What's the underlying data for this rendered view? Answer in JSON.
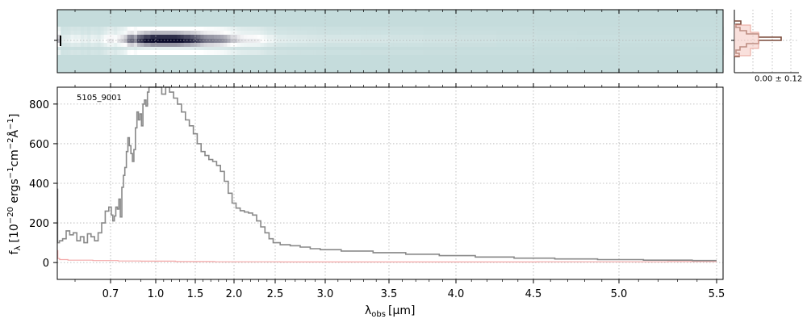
{
  "chart_data": {
    "type": "line",
    "object_label": "5105_9001",
    "x_axis": {
      "label_main": "λ",
      "label_sub": "obs",
      "label_unit": "[μm]",
      "tick_values": [
        0.7,
        1.0,
        1.5,
        2.0,
        2.5,
        3.0,
        3.5,
        4.0,
        4.5,
        5.0,
        5.5
      ],
      "tick_labels": [
        "0.7",
        "1.0",
        "1.5",
        "2.0",
        "2.5",
        "3.0",
        "3.5",
        "4.0",
        "4.5",
        "5.0",
        "5.5"
      ],
      "range": [
        0.55,
        5.53
      ],
      "scale": "nonlinear (spectral resolution)"
    },
    "y_axis": {
      "label_f": "f",
      "label_lambda": "λ",
      "label_a": "[10",
      "label_exp1": "−20",
      "label_b": " ergs",
      "label_exp2": "−1",
      "label_c": "cm",
      "label_exp3": "−2",
      "label_d": "Å",
      "label_exp4": "−1",
      "label_e": "]",
      "tick_values": [
        0,
        200,
        400,
        600,
        800
      ],
      "tick_labels": [
        "0",
        "200",
        "400",
        "600",
        "800"
      ],
      "range": [
        -85,
        885
      ]
    },
    "grid": true,
    "series": [
      {
        "role": "flux",
        "color": "#888888",
        "points": [
          [
            0.55,
            370
          ],
          [
            0.552,
            100
          ],
          [
            0.56,
            110
          ],
          [
            0.57,
            120
          ],
          [
            0.58,
            160
          ],
          [
            0.59,
            140
          ],
          [
            0.6,
            150
          ],
          [
            0.61,
            110
          ],
          [
            0.62,
            130
          ],
          [
            0.63,
            100
          ],
          [
            0.64,
            145
          ],
          [
            0.65,
            130
          ],
          [
            0.66,
            110
          ],
          [
            0.67,
            150
          ],
          [
            0.68,
            200
          ],
          [
            0.69,
            260
          ],
          [
            0.7,
            280
          ],
          [
            0.71,
            240
          ],
          [
            0.72,
            210
          ],
          [
            0.73,
            235
          ],
          [
            0.74,
            280
          ],
          [
            0.75,
            270
          ],
          [
            0.76,
            320
          ],
          [
            0.77,
            230
          ],
          [
            0.78,
            380
          ],
          [
            0.79,
            440
          ],
          [
            0.8,
            480
          ],
          [
            0.81,
            560
          ],
          [
            0.82,
            630
          ],
          [
            0.83,
            590
          ],
          [
            0.84,
            550
          ],
          [
            0.85,
            510
          ],
          [
            0.86,
            570
          ],
          [
            0.87,
            680
          ],
          [
            0.88,
            760
          ],
          [
            0.89,
            720
          ],
          [
            0.9,
            750
          ],
          [
            0.91,
            690
          ],
          [
            0.92,
            800
          ],
          [
            0.93,
            820
          ],
          [
            0.94,
            790
          ],
          [
            0.95,
            860
          ],
          [
            0.96,
            885
          ],
          [
            0.98,
            885
          ],
          [
            1.0,
            885
          ],
          [
            1.05,
            885
          ],
          [
            1.1,
            850
          ],
          [
            1.15,
            885
          ],
          [
            1.2,
            860
          ],
          [
            1.25,
            830
          ],
          [
            1.3,
            800
          ],
          [
            1.35,
            760
          ],
          [
            1.4,
            720
          ],
          [
            1.45,
            690
          ],
          [
            1.5,
            650
          ],
          [
            1.55,
            600
          ],
          [
            1.6,
            560
          ],
          [
            1.65,
            540
          ],
          [
            1.7,
            520
          ],
          [
            1.75,
            510
          ],
          [
            1.8,
            490
          ],
          [
            1.85,
            460
          ],
          [
            1.9,
            410
          ],
          [
            1.95,
            350
          ],
          [
            2.0,
            300
          ],
          [
            2.05,
            275
          ],
          [
            2.1,
            262
          ],
          [
            2.15,
            255
          ],
          [
            2.2,
            250
          ],
          [
            2.25,
            240
          ],
          [
            2.3,
            210
          ],
          [
            2.35,
            180
          ],
          [
            2.4,
            150
          ],
          [
            2.45,
            120
          ],
          [
            2.5,
            100
          ],
          [
            2.6,
            90
          ],
          [
            2.7,
            85
          ],
          [
            2.8,
            78
          ],
          [
            2.9,
            70
          ],
          [
            3.0,
            65
          ],
          [
            3.25,
            58
          ],
          [
            3.5,
            50
          ],
          [
            3.75,
            42
          ],
          [
            4.0,
            35
          ],
          [
            4.25,
            28
          ],
          [
            4.5,
            22
          ],
          [
            4.75,
            18
          ],
          [
            5.0,
            15
          ],
          [
            5.25,
            12
          ],
          [
            5.5,
            10
          ]
        ]
      },
      {
        "role": "error",
        "color": "#f4a7a7",
        "points": [
          [
            0.55,
            60
          ],
          [
            0.553,
            20
          ],
          [
            0.56,
            15
          ],
          [
            0.6,
            12
          ],
          [
            0.7,
            10
          ],
          [
            0.8,
            8
          ],
          [
            1.0,
            7
          ],
          [
            1.5,
            5
          ],
          [
            2.0,
            4
          ],
          [
            3.0,
            3
          ],
          [
            4.0,
            3
          ],
          [
            5.0,
            4
          ],
          [
            5.5,
            5
          ]
        ]
      }
    ],
    "spectrum_2d": {
      "colormap": [
        "#c5dcdc",
        "#ffffff",
        "#0c0c2c"
      ],
      "profile_annotation": "0.00 ± 0.12"
    }
  }
}
